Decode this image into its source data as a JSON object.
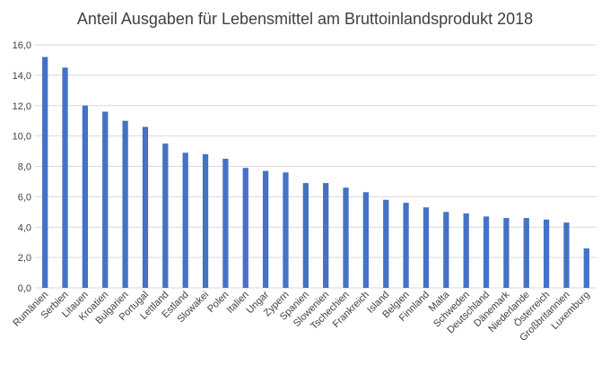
{
  "chart_data": {
    "type": "bar",
    "title": "Anteil Ausgaben für Lebensmittel am Bruttoinlandsprodukt 2018",
    "xlabel": "",
    "ylabel": "",
    "ylim": [
      0,
      16
    ],
    "yticks": [
      "0,0",
      "2,0",
      "4,0",
      "6,0",
      "8,0",
      "10,0",
      "12,0",
      "14,0",
      "16,0"
    ],
    "grid": true,
    "legend": "none",
    "bar_color": "#4472C4",
    "categories": [
      "Rumänien",
      "Serbien",
      "Litauen",
      "Kroatien",
      "Bulgarien",
      "Portugal",
      "Lettland",
      "Estland",
      "Slowakei",
      "Polen",
      "Italien",
      "Ungar",
      "Zypern",
      "Spanien",
      "Slowenien",
      "Tschechien",
      "Frankreich",
      "Island",
      "Belgien",
      "Finnland",
      "Malta",
      "Schweden",
      "Deutschland",
      "Dänemark",
      "Niederlande",
      "Österreich",
      "Großbritannien",
      "Luxemburg"
    ],
    "values": [
      15.2,
      14.5,
      12.0,
      11.6,
      11.0,
      10.6,
      9.5,
      8.9,
      8.8,
      8.5,
      7.9,
      7.7,
      7.6,
      6.9,
      6.9,
      6.6,
      6.3,
      5.8,
      5.6,
      5.3,
      5.0,
      4.9,
      4.7,
      4.6,
      4.6,
      4.5,
      4.3,
      2.6
    ]
  }
}
